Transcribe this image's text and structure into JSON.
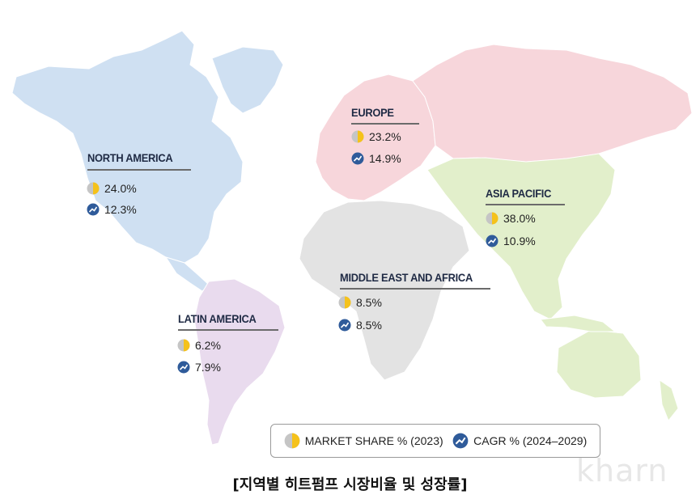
{
  "colors": {
    "north_america": "#cfe0f2",
    "europe": "#f7d6db",
    "asia_pacific": "#e2efcb",
    "middle_east_africa": "#e3e3e3",
    "latin_america": "#e9dbee",
    "share_icon": "#f5c21b",
    "cagr_icon": "#2f5b9a"
  },
  "regions": [
    {
      "name": "NORTH AMERICA",
      "market_share": "24.0%",
      "cagr": "12.3%"
    },
    {
      "name": "EUROPE",
      "market_share": "23.2%",
      "cagr": "14.9%"
    },
    {
      "name": "ASIA PACIFIC",
      "market_share": "38.0%",
      "cagr": "10.9%"
    },
    {
      "name": "MIDDLE EAST AND AFRICA",
      "market_share": "8.5%",
      "cagr": "8.5%"
    },
    {
      "name": "LATIN AMERICA",
      "market_share": "6.2%",
      "cagr": "7.9%"
    }
  ],
  "legend": {
    "market_share_label": "MARKET SHARE % (2023)",
    "cagr_label": "CAGR % (2024–2029)"
  },
  "caption": "[지역별 히트펌프 시장비율 및 성장률]",
  "watermark": "kharn"
}
